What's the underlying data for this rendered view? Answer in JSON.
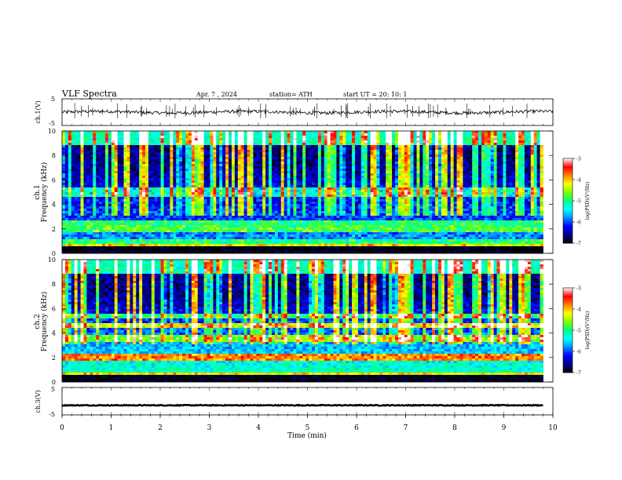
{
  "header": {
    "title": "VLF  Spectra",
    "date": "Apr. 7  , 2024",
    "station": "station= ATH",
    "start": "start  UT  =   20: 10: 1"
  },
  "chart_data": [
    {
      "type": "line",
      "name": "ch1-waveform",
      "ylabel": "ch.1(V)",
      "ytick_labels": [
        "5",
        "-5"
      ],
      "ylim": [
        -5,
        5
      ],
      "xlim": [
        0,
        10
      ],
      "baseline_value": 0,
      "noise_amplitude": 0.6,
      "spike_count": 60
    },
    {
      "type": "heatmap",
      "name": "ch1-spectrogram",
      "ylabel": "ch.1\nFrequency  (kHz)",
      "ylabel_lines": [
        "ch.1",
        "Frequency  (kHz)"
      ],
      "yticks": [
        0,
        2,
        4,
        6,
        8,
        10
      ],
      "ylim": [
        0,
        10
      ],
      "xlim": [
        0,
        9.8
      ],
      "colorbar": {
        "label": "log(PSD)(V²/Hz)",
        "ticks": [
          "-3",
          "-4",
          "-5",
          "-6",
          "-7"
        ],
        "range": [
          -7,
          -3
        ]
      },
      "bands_khz": [
        {
          "f": 0.5,
          "level": -4.2
        },
        {
          "f": 1.0,
          "level": -5.0
        },
        {
          "f": 2.0,
          "level": -4.8
        },
        {
          "f": 2.4,
          "level": -5.0
        },
        {
          "f": 4.8,
          "level": -5.3
        },
        {
          "f": 5.2,
          "level": -5.4
        }
      ],
      "background_level_low": -5.6,
      "background_level_high": -6.6,
      "sferic_count": 120
    },
    {
      "type": "heatmap",
      "name": "ch2-spectrogram",
      "ylabel": "ch.2\nFrequency  (kHz)",
      "ylabel_lines": [
        "ch.2",
        "Frequency  (kHz)"
      ],
      "yticks": [
        0,
        2,
        4,
        6,
        8,
        10
      ],
      "ylim": [
        0,
        10
      ],
      "xlim": [
        0,
        9.8
      ],
      "colorbar": {
        "label": "log(PSD)(V²/Hz)",
        "ticks": [
          "-3",
          "-4",
          "-5",
          "-6",
          "-7"
        ],
        "range": [
          -7,
          -3
        ]
      },
      "bands_khz": [
        {
          "f": 0.5,
          "level": -4.2
        },
        {
          "f": 2.0,
          "level": -3.8
        },
        {
          "f": 3.6,
          "level": -4.6
        },
        {
          "f": 4.6,
          "level": -4.3
        },
        {
          "f": 5.4,
          "level": -5.0
        }
      ],
      "background_level_low": -5.0,
      "background_level_high": -6.6,
      "sferic_count": 110
    },
    {
      "type": "line",
      "name": "ch3-waveform",
      "ylabel": "ch.3(V)",
      "ytick_labels": [
        "5",
        "-5"
      ],
      "ylim": [
        -5,
        5
      ],
      "xlim": [
        0,
        9.8
      ],
      "baseline_value": -1.5,
      "noise_amplitude": 0.15
    }
  ],
  "xaxis": {
    "label": "Time  (min)",
    "ticks": [
      "0",
      "1",
      "2",
      "3",
      "4",
      "5",
      "6",
      "7",
      "8",
      "9",
      "10"
    ],
    "xlim": [
      0,
      10
    ]
  },
  "colors": {
    "scale": [
      "#000000",
      "#00008b",
      "#0000ff",
      "#0090ff",
      "#00ffff",
      "#00ff80",
      "#80ff00",
      "#ffff00",
      "#ff8000",
      "#ff0000",
      "#ffffff"
    ]
  }
}
